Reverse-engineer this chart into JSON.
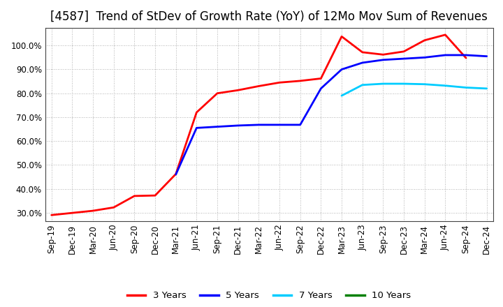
{
  "title": "[4587]  Trend of StDev of Growth Rate (YoY) of 12Mo Mov Sum of Revenues",
  "x_labels": [
    "Sep-19",
    "Dec-19",
    "Mar-20",
    "Jun-20",
    "Sep-20",
    "Dec-20",
    "Mar-21",
    "Jun-21",
    "Sep-21",
    "Dec-21",
    "Mar-22",
    "Jun-22",
    "Sep-22",
    "Dec-22",
    "Mar-23",
    "Jun-23",
    "Sep-23",
    "Dec-23",
    "Mar-24",
    "Jun-24",
    "Sep-24",
    "Dec-24"
  ],
  "ylim": [
    0.265,
    1.075
  ],
  "yticks": [
    0.3,
    0.4,
    0.5,
    0.6,
    0.7,
    0.8,
    0.9,
    1.0
  ],
  "series": {
    "3 Years": {
      "color": "#FF0000",
      "data_x": [
        0,
        1,
        2,
        3,
        4,
        5,
        6,
        7,
        8,
        9,
        10,
        11,
        12,
        13,
        14,
        15,
        16,
        17,
        18,
        19,
        20
      ],
      "data_y": [
        0.29,
        0.299,
        0.308,
        0.322,
        0.37,
        0.372,
        0.462,
        0.72,
        0.8,
        0.813,
        0.83,
        0.845,
        0.852,
        0.862,
        1.038,
        0.972,
        0.962,
        0.975,
        1.022,
        1.045,
        0.948
      ]
    },
    "5 Years": {
      "color": "#0000FF",
      "data_x": [
        6,
        7,
        8,
        9,
        10,
        11,
        12,
        13,
        14,
        15,
        16,
        17,
        18,
        19,
        20,
        21
      ],
      "data_y": [
        0.46,
        0.655,
        0.66,
        0.665,
        0.668,
        0.668,
        0.668,
        0.82,
        0.9,
        0.928,
        0.94,
        0.945,
        0.95,
        0.96,
        0.96,
        0.955
      ]
    },
    "7 Years": {
      "color": "#00CCFF",
      "data_x": [
        14,
        15,
        16,
        17,
        18,
        19,
        20,
        21
      ],
      "data_y": [
        0.79,
        0.835,
        0.84,
        0.84,
        0.838,
        0.832,
        0.824,
        0.82
      ]
    },
    "10 Years": {
      "color": "#008000",
      "data_x": [],
      "data_y": []
    }
  },
  "legend_entries": [
    "3 Years",
    "5 Years",
    "7 Years",
    "10 Years"
  ],
  "legend_colors": [
    "#FF0000",
    "#0000FF",
    "#00CCFF",
    "#008000"
  ],
  "background_color": "#FFFFFF",
  "grid_color": "#999999",
  "title_fontsize": 12,
  "axis_fontsize": 8.5
}
